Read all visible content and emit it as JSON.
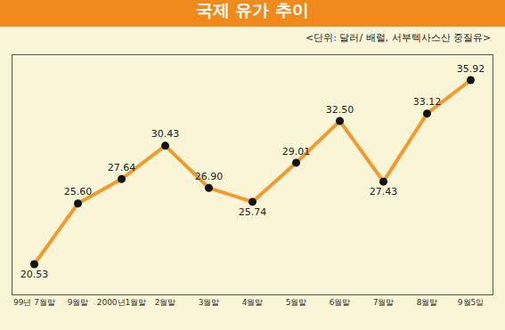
{
  "chart_data": {
    "type": "line",
    "title": "국제 유가 추이",
    "subtitle": "<단위: 달러/ 배럴, 서부텍사스산 중질유>",
    "categories": [
      "99년 7월말",
      "9월말",
      "2000년1월말",
      "2월말",
      "3월말",
      "4월말",
      "5월말",
      "6월말",
      "7월말",
      "8월말",
      "9월5일"
    ],
    "values": [
      20.53,
      25.6,
      27.64,
      30.43,
      26.9,
      25.74,
      29.01,
      32.5,
      27.43,
      33.12,
      35.92
    ],
    "value_labels": [
      "20.53",
      "25.60",
      "27.64",
      "30.43",
      "26.90",
      "25.74",
      "29.01",
      "32.50",
      "27.43",
      "33.12",
      "35.92"
    ],
    "color": "#f39a2e",
    "marker": "circle",
    "line_style": "solid",
    "ylim": [
      18,
      38
    ],
    "yticks": [],
    "grid": false,
    "data_labels": true,
    "tick_labels": "x"
  }
}
